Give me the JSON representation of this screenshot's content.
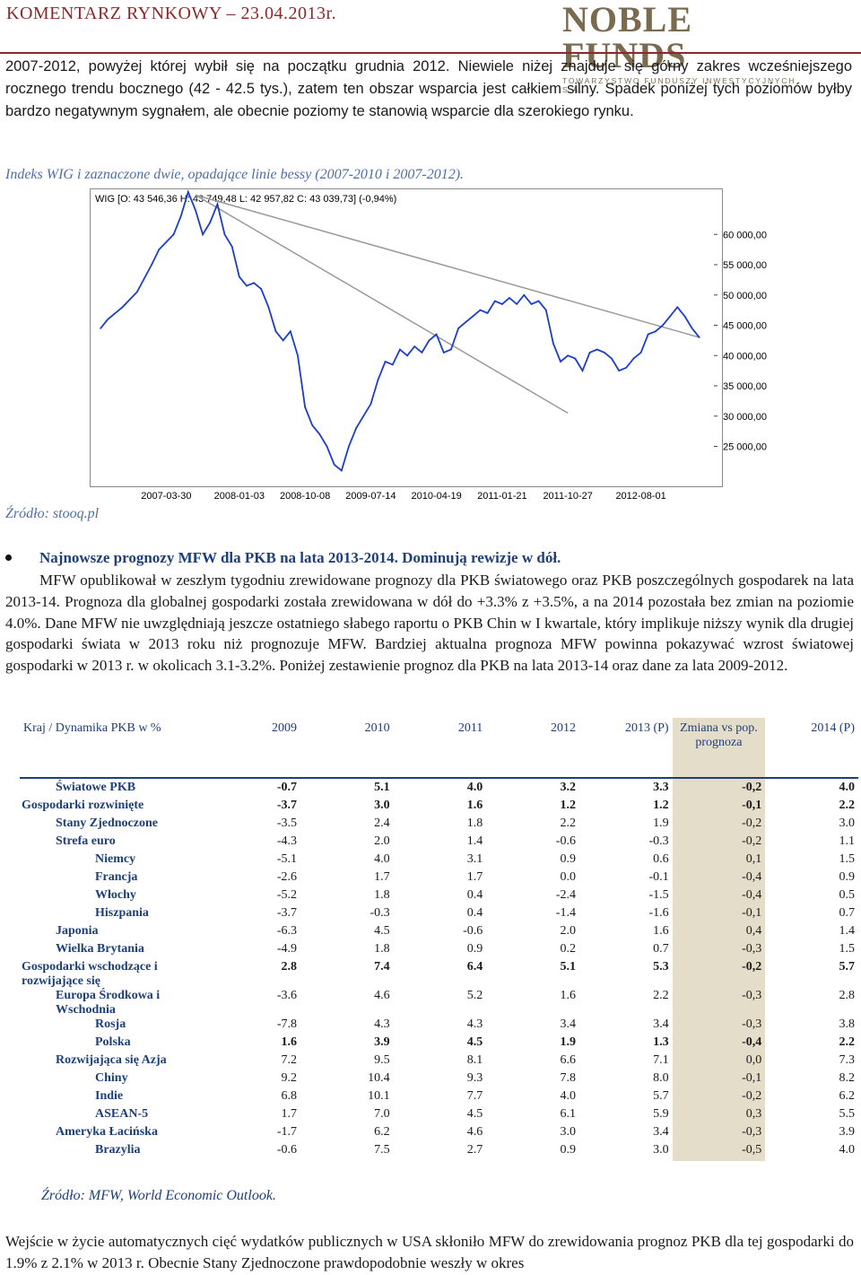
{
  "header": {
    "title": "KOMENTARZ RYNKOWY – 23.04.2013r.",
    "logo_main": "NOBLE FUNDS",
    "logo_sub": "TOWARZYSTWO FUNDUSZY INWESTYCYJNYCH S.A."
  },
  "intro": "2007-2012, powyżej której wybił się na początku grudnia 2012. Niewiele niżej znajduje się górny zakres wcześniejszego rocznego trendu bocznego (42 - 42.5 tys.), zatem ten obszar wsparcia jest całkiem silny. Spadek poniżej tych poziomów byłby bardzo negatywnym sygnałem, ale obecnie poziomy te stanowią wsparcie dla szerokiego rynku.",
  "chart_caption": "Indeks WIG i zaznaczone dwie, opadające linie bessy (2007-2010 i 2007-2012).",
  "chart_source": "Źródło: stooq.pl",
  "chart_data": {
    "type": "line",
    "title": "WIG [O: 43 546,36 H: 43 749,48 L: 42 957,82 C: 43 039,73] (-0,94%)",
    "x_ticks": [
      "2007-03-30",
      "2008-01-03",
      "2008-10-08",
      "2009-07-14",
      "2010-04-19",
      "2011-01-21",
      "2011-10-27",
      "2012-08-01"
    ],
    "y_ticks": [
      "60 000,00",
      "55 000,00",
      "50 000,00",
      "45 000,00",
      "40 000,00",
      "35 000,00",
      "30 000,00",
      "25 000,00"
    ],
    "y_tick_values": [
      60000,
      55000,
      50000,
      45000,
      40000,
      35000,
      30000,
      25000
    ],
    "ylim": [
      19000,
      67000
    ],
    "series": [
      {
        "x": [
          "2006-06",
          "2006-07",
          "2006-09",
          "2006-11",
          "2007-01",
          "2007-02",
          "2007-04",
          "2007-05",
          "2007-06",
          "2007-07",
          "2007-08",
          "2007-09",
          "2007-10",
          "2007-11",
          "2007-12",
          "2008-01",
          "2008-02",
          "2008-03",
          "2008-04",
          "2008-05",
          "2008-06",
          "2008-07",
          "2008-08",
          "2008-09",
          "2008-10",
          "2008-11",
          "2008-12",
          "2009-01",
          "2009-02",
          "2009-03",
          "2009-04",
          "2009-05",
          "2009-06",
          "2009-07",
          "2009-08",
          "2009-09",
          "2009-10",
          "2009-11",
          "2009-12",
          "2010-01",
          "2010-02",
          "2010-03",
          "2010-04",
          "2010-05",
          "2010-06",
          "2010-07",
          "2010-08",
          "2010-09",
          "2010-10",
          "2010-11",
          "2010-12",
          "2011-01",
          "2011-02",
          "2011-03",
          "2011-04",
          "2011-05",
          "2011-06",
          "2011-07",
          "2011-08",
          "2011-09",
          "2011-10",
          "2011-11",
          "2011-12",
          "2012-01",
          "2012-02",
          "2012-03",
          "2012-04",
          "2012-05",
          "2012-06",
          "2012-07",
          "2012-08",
          "2012-09",
          "2012-10",
          "2012-11",
          "2012-12",
          "2013-01",
          "2013-02",
          "2013-03",
          "2013-04"
        ],
        "values": [
          44500,
          46000,
          48000,
          50500,
          55000,
          57500,
          60000,
          63000,
          67000,
          64000,
          60000,
          62000,
          65000,
          60000,
          58000,
          53000,
          51500,
          52000,
          51000,
          48000,
          44000,
          42500,
          44000,
          40000,
          31500,
          28500,
          27000,
          25000,
          22000,
          21000,
          25000,
          28000,
          30000,
          32000,
          36000,
          39000,
          38500,
          41000,
          40000,
          41500,
          40500,
          42500,
          43500,
          40500,
          41000,
          44500,
          45500,
          46500,
          47500,
          47000,
          49000,
          48500,
          49500,
          48500,
          50000,
          48500,
          49000,
          47500,
          42000,
          39000,
          40000,
          39500,
          37500,
          40500,
          41000,
          40500,
          39500,
          37500,
          38000,
          39500,
          40500,
          43500,
          44000,
          45000,
          46500,
          48000,
          46500,
          44500,
          43000
        ]
      }
    ],
    "trendlines": [
      {
        "from": [
          "2007-07",
          66500
        ],
        "to": [
          "2013-04",
          43000
        ]
      },
      {
        "from": [
          "2007-07",
          66500
        ],
        "to": [
          "2011-10",
          30500
        ]
      }
    ]
  },
  "bullet": {
    "title": "Najnowsze prognozy MFW dla PKB na lata 2013-2014. Dominują rewizje w dół.",
    "text": "MFW opublikował w zeszłym tygodniu zrewidowane prognozy dla PKB światowego oraz PKB poszczególnych gospodarek na lata 2013-14. Prognoza dla globalnej gospodarki została zrewidowana w dół do +3.3% z +3.5%, a na 2014 pozostała bez zmian na poziomie 4.0%. Dane MFW nie uwzględniają jeszcze ostatniego słabego raportu o PKB Chin w I kwartale, który implikuje niższy wynik dla drugiej gospodarki świata w 2013 roku niż prognozuje MFW. Bardziej aktualna prognoza MFW powinna pokazywać wzrost światowej gospodarki w 2013 r. w okolicach 3.1-3.2%. Poniżej zestawienie prognoz dla PKB na lata 2013-14 oraz dane za lata 2009-2012."
  },
  "table": {
    "headers": [
      "Kraj / Dynamika PKB w %",
      "2009",
      "2010",
      "2011",
      "2012",
      "2013 (P)",
      "Zmiana vs pop. prognoza",
      "2014 (P)"
    ],
    "rows": [
      {
        "name": "Światowe PKB",
        "level": 1,
        "bold": true,
        "values": [
          "-0.7",
          "5.1",
          "4.0",
          "3.2",
          "3.3",
          "-0,2",
          "4.0"
        ]
      },
      {
        "name": "Gospodarki rozwinięte",
        "level": 0,
        "bold": true,
        "values": [
          "-3.7",
          "3.0",
          "1.6",
          "1.2",
          "1.2",
          "-0,1",
          "2.2"
        ]
      },
      {
        "name": "Stany Zjednoczone",
        "level": 1,
        "bold": false,
        "values": [
          "-3.5",
          "2.4",
          "1.8",
          "2.2",
          "1.9",
          "-0,2",
          "3.0"
        ]
      },
      {
        "name": "Strefa euro",
        "level": 1,
        "bold": false,
        "values": [
          "-4.3",
          "2.0",
          "1.4",
          "-0.6",
          "-0.3",
          "-0,2",
          "1.1"
        ]
      },
      {
        "name": "Niemcy",
        "level": 2,
        "bold": false,
        "values": [
          "-5.1",
          "4.0",
          "3.1",
          "0.9",
          "0.6",
          "0,1",
          "1.5"
        ]
      },
      {
        "name": "Francja",
        "level": 2,
        "bold": false,
        "values": [
          "-2.6",
          "1.7",
          "1.7",
          "0.0",
          "-0.1",
          "-0,4",
          "0.9"
        ]
      },
      {
        "name": "Włochy",
        "level": 2,
        "bold": false,
        "values": [
          "-5.2",
          "1.8",
          "0.4",
          "-2.4",
          "-1.5",
          "-0,4",
          "0.5"
        ]
      },
      {
        "name": "Hiszpania",
        "level": 2,
        "bold": false,
        "values": [
          "-3.7",
          "-0.3",
          "0.4",
          "-1.4",
          "-1.6",
          "-0,1",
          "0.7"
        ]
      },
      {
        "name": "Japonia",
        "level": 1,
        "bold": false,
        "values": [
          "-6.3",
          "4.5",
          "-0.6",
          "2.0",
          "1.6",
          "0,4",
          "1.4"
        ]
      },
      {
        "name": "Wielka Brytania",
        "level": 1,
        "bold": false,
        "values": [
          "-4.9",
          "1.8",
          "0.9",
          "0.2",
          "0.7",
          "-0,3",
          "1.5"
        ]
      },
      {
        "name": "Gospodarki wschodzące i rozwijające się",
        "level": 0,
        "bold": true,
        "values": [
          "2.8",
          "7.4",
          "6.4",
          "5.1",
          "5.3",
          "-0,2",
          "5.7"
        ]
      },
      {
        "name": "Europa Środkowa i Wschodnia",
        "level": 1,
        "bold": false,
        "values": [
          "-3.6",
          "4.6",
          "5.2",
          "1.6",
          "2.2",
          "-0,3",
          "2.8"
        ]
      },
      {
        "name": "Rosja",
        "level": 2,
        "bold": false,
        "values": [
          "-7.8",
          "4.3",
          "4.3",
          "3.4",
          "3.4",
          "-0,3",
          "3.8"
        ]
      },
      {
        "name": "Polska",
        "level": 2,
        "bold": true,
        "values": [
          "1.6",
          "3.9",
          "4.5",
          "1.9",
          "1.3",
          "-0,4",
          "2.2"
        ]
      },
      {
        "name": "Rozwijająca się Azja",
        "level": 1,
        "bold": false,
        "values": [
          "7.2",
          "9.5",
          "8.1",
          "6.6",
          "7.1",
          "0,0",
          "7.3"
        ]
      },
      {
        "name": "Chiny",
        "level": 2,
        "bold": false,
        "values": [
          "9.2",
          "10.4",
          "9.3",
          "7.8",
          "8.0",
          "-0,1",
          "8.2"
        ]
      },
      {
        "name": "Indie",
        "level": 2,
        "bold": false,
        "values": [
          "6.8",
          "10.1",
          "7.7",
          "4.0",
          "5.7",
          "-0,2",
          "6.2"
        ]
      },
      {
        "name": "ASEAN-5",
        "level": 2,
        "bold": false,
        "values": [
          "1.7",
          "7.0",
          "4.5",
          "6.1",
          "5.9",
          "0,3",
          "5.5"
        ]
      },
      {
        "name": "Ameryka Łacińska",
        "level": 1,
        "bold": false,
        "values": [
          "-1.7",
          "6.2",
          "4.6",
          "3.0",
          "3.4",
          "-0,3",
          "3.9"
        ]
      },
      {
        "name": "Brazylia",
        "level": 2,
        "bold": false,
        "values": [
          "-0.6",
          "7.5",
          "2.7",
          "0.9",
          "3.0",
          "-0,5",
          "4.0"
        ]
      }
    ],
    "source": "Źródło: MFW, World Economic Outlook."
  },
  "last_paragraph": "Wejście w życie automatycznych cięć wydatków publicznych w USA skłoniło MFW do zrewidowania prognoz PKB dla tej gospodarki do 1.9% z 2.1% w 2013 r. Obecnie Stany Zjednoczone prawdopodobnie weszły w okres"
}
